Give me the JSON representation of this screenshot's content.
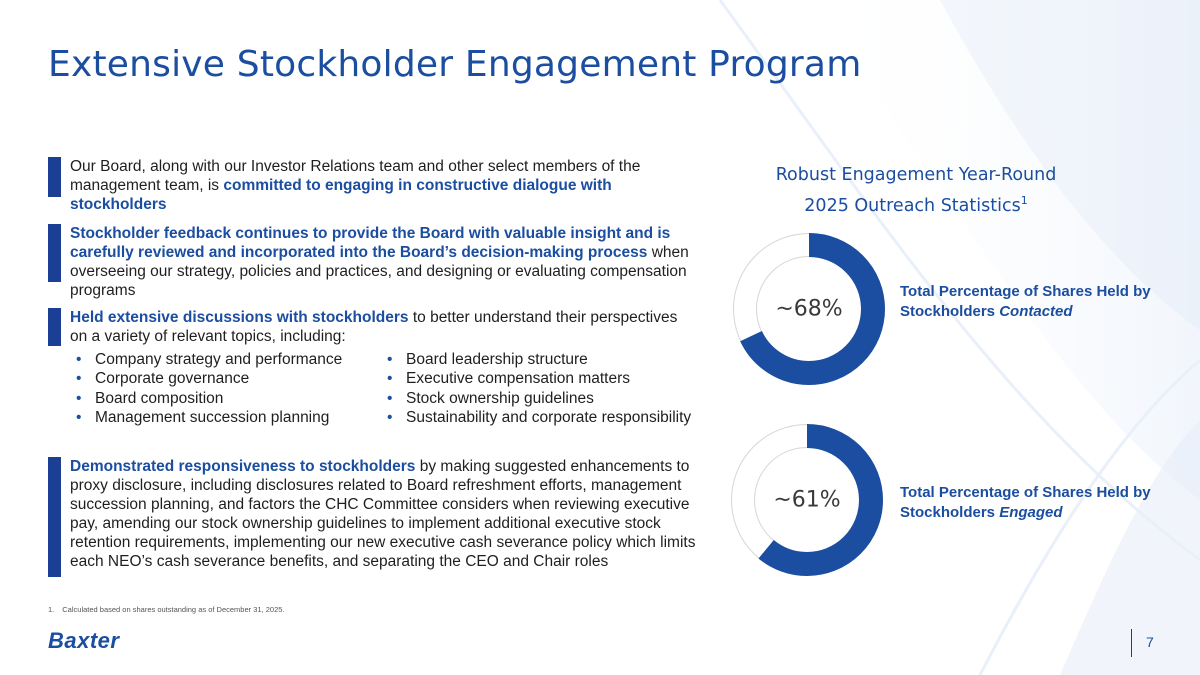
{
  "slide": {
    "title": "Extensive Stockholder Engagement Program",
    "page_number": "7",
    "logo_text": "Baxter"
  },
  "blocks": [
    {
      "parts": [
        {
          "text": "Our Board, along with our Investor Relations team and other select members of the management team, is ",
          "emphasis": false
        },
        {
          "text": "committed to engaging in constructive dialogue with stockholders",
          "emphasis": true
        }
      ]
    },
    {
      "parts": [
        {
          "text": "Stockholder feedback continues to provide the Board with valuable insight and is carefully reviewed and incorporated into the Board’s decision-making process",
          "emphasis": true
        },
        {
          "text": " when overseeing our strategy, policies and practices, and designing or evaluating compensation programs",
          "emphasis": false
        }
      ]
    },
    {
      "parts": [
        {
          "text": "Held extensive discussions with stockholders",
          "emphasis": true
        },
        {
          "text": " to better understand their perspectives on a variety of relevant topics, including:",
          "emphasis": false
        }
      ]
    },
    {
      "parts": [
        {
          "text": "Demonstrated responsiveness to stockholders",
          "emphasis": true
        },
        {
          "text": " by making suggested enhancements to proxy disclosure, including disclosures related to Board refreshment efforts, management succession planning, and factors the CHC Committee considers when reviewing executive pay, amending our stock ownership guidelines to implement additional executive stock retention requirements, implementing our new executive cash severance policy which limits each NEO’s cash severance benefits, and separating the CEO and Chair roles",
          "emphasis": false
        }
      ]
    }
  ],
  "topics": {
    "bullet": "•",
    "left": [
      "Company strategy and performance",
      "Corporate governance",
      "Board composition",
      "Management succession planning"
    ],
    "right": [
      "Board leadership structure",
      "Executive compensation matters",
      "Stock ownership guidelines",
      "Sustainability and corporate responsibility"
    ]
  },
  "stats": {
    "heading_line1": "Robust Engagement Year-Round",
    "heading_line2": "2025 Outreach Statistics",
    "heading_sup": "1",
    "contacted": {
      "value": 68,
      "display": "~68%",
      "label_prefix": "Total Percentage of Shares Held by Stockholders ",
      "label_em": "Contacted"
    },
    "engaged": {
      "value": 61,
      "display": "~61%",
      "label_prefix": "Total Percentage of Shares Held by Stockholders ",
      "label_em": "Engaged"
    }
  },
  "footnote": {
    "number": "1.",
    "text": "Calculated based on shares outstanding as of December 31, 2025."
  },
  "colors": {
    "accent": "#1b4ea0",
    "bar": "#1b3f94",
    "ring_empty": "#ffffff",
    "ring_border": "#d6d6d6"
  }
}
